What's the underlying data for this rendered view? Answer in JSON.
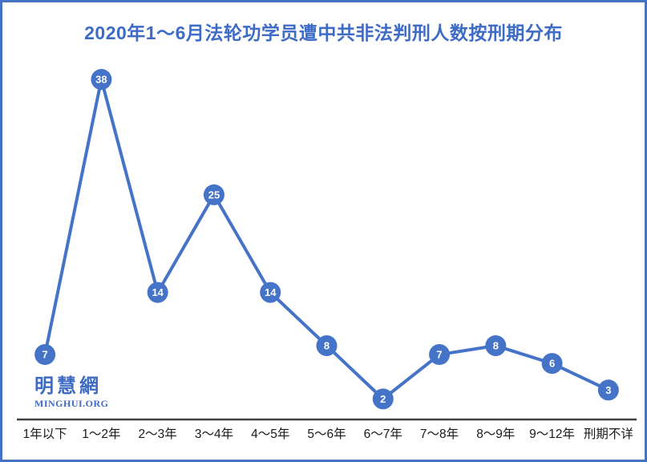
{
  "title": "2020年1～6月法轮功学员遭中共非法判刑人数按刑期分布",
  "watermark": {
    "name": "明慧網",
    "url": "MINGHUI.ORG"
  },
  "colors": {
    "border_blue": "#4472c4",
    "title_blue": "#3d6bc5",
    "series_blue": "#4573c8",
    "watermark_blue": "#3e6bc2",
    "axis_dark": "#404040",
    "tick_label": "#1a1a1a",
    "marker_text": "#ffffff",
    "background": "#ffffff"
  },
  "chart_data": {
    "type": "line",
    "title": "2020年1～6月法轮功学员遭中共非法判刑人数按刑期分布",
    "categories": [
      "1年以下",
      "1～2年",
      "2～3年",
      "3～4年",
      "4～5年",
      "5～6年",
      "6～7年",
      "7～8年",
      "8～9年",
      "9～12年",
      "刑期不详"
    ],
    "values": [
      7,
      38,
      14,
      25,
      14,
      8,
      2,
      7,
      8,
      6,
      3
    ],
    "series_name": "判刑人数",
    "xlabel": "",
    "ylabel": "",
    "ylim": [
      0,
      38
    ],
    "grid": false,
    "legend": false,
    "y_axis_visible": false,
    "data_labels": "inside-marker",
    "marker": "circle"
  }
}
